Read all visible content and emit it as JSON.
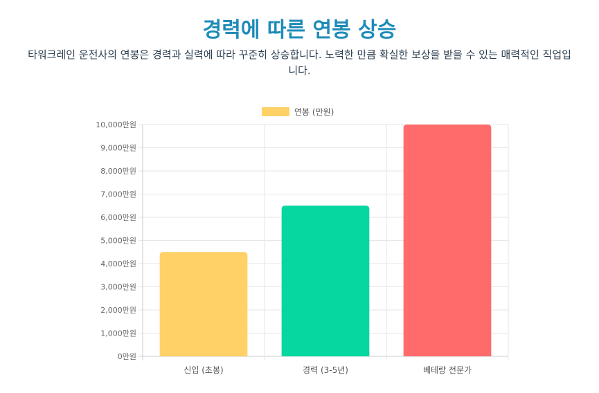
{
  "header": {
    "title": "경력에 따른 연봉 상승",
    "description": "타워크레인 운전사의 연봉은 경력과 실력에 따라 꾸준히 상승합니다. 노력한 만큼 확실한 보상을 받을 수 있는 매력적인 직업입니다."
  },
  "chart_data": {
    "type": "bar",
    "categories": [
      "신입 (초봉)",
      "경력 (3-5년)",
      "베테랑 전문가"
    ],
    "series": [
      {
        "name": "연봉 (만원)",
        "values": [
          4500,
          6500,
          10000
        ],
        "colors": [
          "#FFD166",
          "#06D6A0",
          "#FF6B6B"
        ]
      }
    ],
    "ylim": [
      0,
      10000
    ],
    "yticks": [
      "0만원",
      "1,000만원",
      "2,000만원",
      "3,000만원",
      "4,000만원",
      "5,000만원",
      "6,000만원",
      "7,000만원",
      "8,000만원",
      "9,000만원",
      "10,000만원"
    ],
    "legend_position": "top",
    "grid": true
  }
}
